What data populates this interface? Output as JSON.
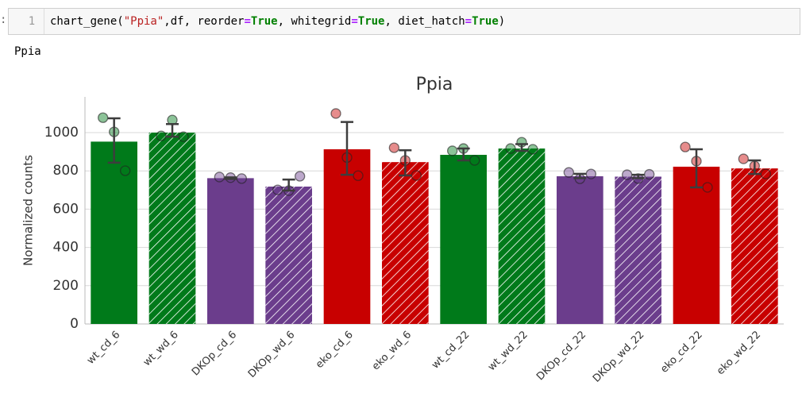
{
  "prompt": ":",
  "cell": {
    "line_number": "1",
    "code_tokens": [
      "chart_gene(",
      "\"Ppia\"",
      ",df, reorder",
      "=",
      "True",
      ", whitegrid",
      "=",
      "True",
      ", diet_hatch",
      "=",
      "True",
      ")"
    ]
  },
  "output_text": "Ppia",
  "chart_data": {
    "type": "bar",
    "title": "Ppia",
    "y_label": "Normalized counts",
    "categories": [
      "wt_cd_6",
      "wt_wd_6",
      "DKOp_cd_6",
      "DKOp_wd_6",
      "eko_cd_6",
      "eko_wd_6",
      "wt_cd_22",
      "wt_wd_22",
      "DKOp_cd_22",
      "DKOp_wd_22",
      "eko_cd_22",
      "eko_wd_22"
    ],
    "values": [
      953,
      1000,
      762,
      718,
      913,
      846,
      884,
      917,
      772,
      770,
      822,
      813
    ],
    "colors": [
      "#007a1a",
      "#007a1a",
      "#6b3d8c",
      "#6b3d8c",
      "#c80000",
      "#c80000",
      "#007a1a",
      "#007a1a",
      "#6b3d8c",
      "#6b3d8c",
      "#c80000",
      "#c80000"
    ],
    "hatch": [
      false,
      true,
      false,
      true,
      false,
      true,
      false,
      true,
      false,
      true,
      false,
      true
    ],
    "ci": [
      [
        843,
        1075
      ],
      [
        979,
        1045
      ],
      [
        758,
        766
      ],
      [
        697,
        755
      ],
      [
        780,
        1056
      ],
      [
        776,
        908
      ],
      [
        855,
        917
      ],
      [
        905,
        940
      ],
      [
        762,
        785
      ],
      [
        762,
        780
      ],
      [
        714,
        913
      ],
      [
        784,
        855
      ]
    ],
    "points": [
      [
        1078,
        1004,
        801
      ],
      [
        983,
        1066,
        979
      ],
      [
        768,
        765,
        760
      ],
      [
        701,
        697,
        772
      ],
      [
        1100,
        870,
        775
      ],
      [
        921,
        855,
        776
      ],
      [
        905,
        917,
        855
      ],
      [
        917,
        950,
        913
      ],
      [
        792,
        759,
        784
      ],
      [
        780,
        760,
        782
      ],
      [
        925,
        851,
        714
      ],
      [
        863,
        826,
        784
      ]
    ],
    "ylim": [
      0,
      1187
    ],
    "yticks": [
      0,
      200,
      400,
      600,
      800,
      1000
    ],
    "grid": true
  }
}
